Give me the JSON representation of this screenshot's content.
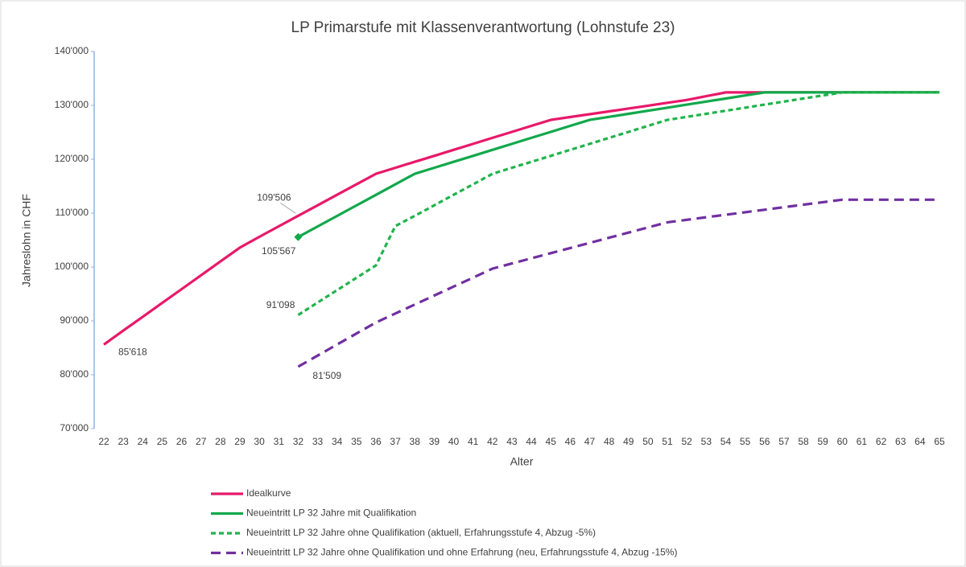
{
  "chart_data": {
    "type": "line",
    "title": "LP Primarstufe mit Klassenverantwortung (Lohnstufe 23)",
    "x_label": "Alter",
    "y_label": "Jahreslohn in CHF",
    "categories": [
      22,
      23,
      24,
      25,
      26,
      27,
      28,
      29,
      30,
      31,
      32,
      33,
      34,
      35,
      36,
      37,
      38,
      39,
      40,
      41,
      42,
      43,
      44,
      45,
      46,
      47,
      48,
      49,
      50,
      51,
      52,
      53,
      54,
      55,
      56,
      57,
      58,
      59,
      60,
      61,
      62,
      63,
      64,
      65
    ],
    "ylim": [
      70000,
      140000
    ],
    "yticks": [
      {
        "value": 70000,
        "label": "70'000"
      },
      {
        "value": 80000,
        "label": "80'000"
      },
      {
        "value": 90000,
        "label": "90'000"
      },
      {
        "value": 100000,
        "label": "100'000"
      },
      {
        "value": 110000,
        "label": "110'000"
      },
      {
        "value": 120000,
        "label": "120'000"
      },
      {
        "value": 130000,
        "label": "130'000"
      },
      {
        "value": 140000,
        "label": "140'000"
      }
    ],
    "grid": false,
    "legend": "bottom",
    "series": [
      {
        "name": "Idealkurve",
        "color": "#e8196a",
        "dash": "solid",
        "values": [
          85618,
          88187,
          90756,
          93325,
          95894,
          98463,
          101032,
          103600,
          105600,
          107550,
          109506,
          111450,
          113400,
          115350,
          117300,
          118411,
          119522,
          120633,
          121744,
          122855,
          123966,
          125077,
          126188,
          127300,
          127829,
          128357,
          128886,
          129414,
          129943,
          130471,
          131000,
          131700,
          132400,
          132400,
          132400,
          132400,
          132400,
          132400,
          132400,
          132400,
          132400,
          132400,
          132400,
          132400
        ],
        "value_labels": [
          "85'618",
          null,
          null,
          null,
          null,
          null,
          null,
          null,
          null,
          null,
          "109'506",
          null,
          null,
          null,
          null,
          null,
          null,
          null,
          null,
          null,
          null,
          null,
          null,
          null,
          null,
          null,
          null,
          null,
          null,
          null,
          null,
          null,
          null,
          null,
          null,
          null,
          null,
          null,
          null,
          null,
          null,
          null,
          null,
          null
        ]
      },
      {
        "name": "Neueintritt LP 32 Jahre mit Qualifikation",
        "color": "#12a84c",
        "dash": "solid",
        "marker": "diamond",
        "values": [
          null,
          null,
          null,
          null,
          null,
          null,
          null,
          null,
          null,
          null,
          105567,
          107522,
          109478,
          111433,
          113389,
          115344,
          117300,
          118411,
          119522,
          120633,
          121744,
          122855,
          123966,
          125077,
          126188,
          127300,
          127867,
          128433,
          129000,
          129567,
          130133,
          130700,
          131267,
          131833,
          132400,
          132400,
          132400,
          132400,
          132400,
          132400,
          132400,
          132400,
          132400,
          132400
        ],
        "value_labels": [
          null,
          null,
          null,
          null,
          null,
          null,
          null,
          null,
          null,
          null,
          "105'567",
          null,
          null,
          null,
          null,
          null,
          null,
          null,
          null,
          null,
          null,
          null,
          null,
          null,
          null,
          null,
          null,
          null,
          null,
          null,
          null,
          null,
          null,
          null,
          null,
          null,
          null,
          null,
          null,
          null,
          null,
          null,
          null,
          null
        ]
      },
      {
        "name": "Neueintritt LP 32 Jahre ohne Qualifikation (aktuell, Erfahrungsstufe 4, Abzug -5%)",
        "color": "#22b34c",
        "dash": "short",
        "values": [
          null,
          null,
          null,
          null,
          null,
          null,
          null,
          null,
          null,
          null,
          91098,
          93400,
          95700,
          98000,
          100300,
          107600,
          109500,
          111450,
          113400,
          115350,
          117300,
          118411,
          119522,
          120633,
          121744,
          122855,
          123966,
          125077,
          126188,
          127300,
          127867,
          128433,
          129000,
          129567,
          130133,
          130700,
          131267,
          131833,
          132400,
          132400,
          132400,
          132400,
          132400,
          132400
        ],
        "value_labels": [
          null,
          null,
          null,
          null,
          null,
          null,
          null,
          null,
          null,
          null,
          "91'098",
          null,
          null,
          null,
          null,
          null,
          null,
          null,
          null,
          null,
          null,
          null,
          null,
          null,
          null,
          null,
          null,
          null,
          null,
          null,
          null,
          null,
          null,
          null,
          null,
          null,
          null,
          null,
          null,
          null,
          null,
          null,
          null,
          null
        ]
      },
      {
        "name": "Neueintritt LP 32 Jahre ohne Qualifikation und ohne Erfahrung (neu, Erfahrungsstufe 4, Abzug -15%)",
        "color": "#7030a0",
        "dash": "long",
        "values": [
          null,
          null,
          null,
          null,
          null,
          null,
          null,
          null,
          null,
          null,
          81509,
          83557,
          85605,
          87653,
          89700,
          91367,
          93033,
          94700,
          96367,
          98033,
          99700,
          100656,
          101611,
          102567,
          103522,
          104478,
          105433,
          106389,
          107344,
          108300,
          108767,
          109233,
          109700,
          110167,
          110633,
          111100,
          111567,
          112033,
          112500,
          112500,
          112500,
          112500,
          112500,
          112500
        ],
        "value_labels": [
          null,
          null,
          null,
          null,
          null,
          null,
          null,
          null,
          null,
          null,
          "81'509",
          null,
          null,
          null,
          null,
          null,
          null,
          null,
          null,
          null,
          null,
          null,
          null,
          null,
          null,
          null,
          null,
          null,
          null,
          null,
          null,
          null,
          null,
          null,
          null,
          null,
          null,
          null,
          null,
          null,
          null,
          null,
          null,
          null
        ]
      }
    ]
  }
}
